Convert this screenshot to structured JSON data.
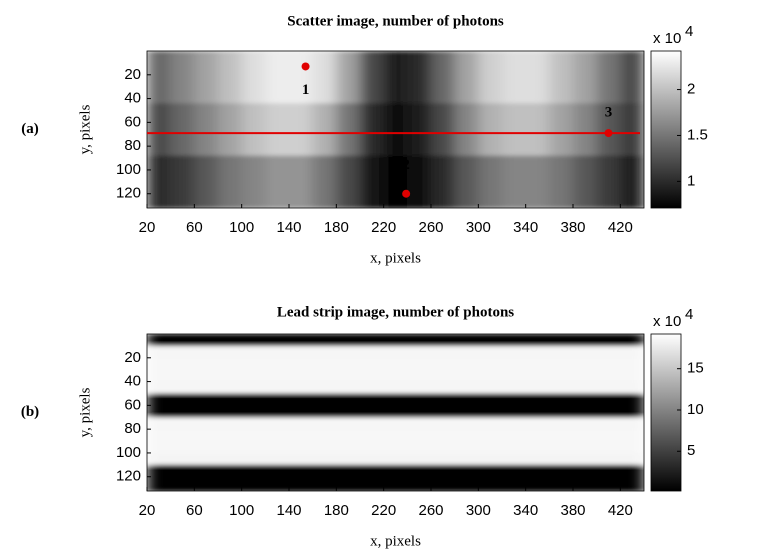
{
  "chart_data": [
    {
      "type": "heatmap",
      "panel_label": "(a)",
      "title": "Scatter image, number of photons",
      "xlabel": "x, pixels",
      "ylabel": "y, pixels",
      "colormap": "gray",
      "x": [
        30,
        50,
        70,
        90,
        110,
        130,
        150,
        170,
        190,
        210,
        230,
        250,
        270,
        290,
        310,
        330,
        350,
        370,
        390,
        410,
        430
      ],
      "y": [
        22,
        66,
        110
      ],
      "values": [
        [
          14000,
          16000,
          18000,
          20000,
          22000,
          23000,
          23000,
          22000,
          18000,
          12000,
          9000,
          10000,
          14000,
          18000,
          21000,
          22000,
          22000,
          20000,
          18000,
          15000,
          12000
        ],
        [
          12000,
          14000,
          16000,
          18000,
          20000,
          21000,
          21000,
          19000,
          15000,
          10000,
          8000,
          9000,
          12000,
          16000,
          19000,
          20000,
          20000,
          18000,
          16000,
          13000,
          11000
        ],
        [
          10000,
          11000,
          13000,
          15000,
          16000,
          17000,
          17000,
          15000,
          12000,
          8500,
          7500,
          8000,
          10000,
          13000,
          15000,
          16000,
          16000,
          15000,
          13000,
          11000,
          9000
        ]
      ],
      "xlim": [
        20,
        440
      ],
      "ylim": [
        0,
        132
      ],
      "xticks": [
        20,
        60,
        100,
        140,
        180,
        220,
        260,
        300,
        340,
        380,
        420
      ],
      "yticks": [
        20,
        40,
        60,
        80,
        100,
        120
      ],
      "clim": [
        7100,
        24200
      ],
      "cticks": [
        {
          "value": 10000,
          "label": "1"
        },
        {
          "value": 15000,
          "label": "1.5"
        },
        {
          "value": 20000,
          "label": "2"
        }
      ],
      "cmultiplier": "x 10",
      "cexponent": "4",
      "annotation_color": "#e00000",
      "line_y": 69,
      "markers": [
        {
          "label": "1",
          "x": 154,
          "y": 13
        },
        {
          "label": "2",
          "x": 239,
          "y": 120
        },
        {
          "label": "3",
          "x": 410,
          "y": 69
        }
      ]
    },
    {
      "type": "heatmap",
      "panel_label": "(b)",
      "title": "Lead strip image, number of photons",
      "xlabel": "x, pixels",
      "ylabel": "y, pixels",
      "colormap": "gray",
      "x": [
        230
      ],
      "y": [
        5,
        15,
        25,
        35,
        45,
        55,
        65,
        75,
        85,
        95,
        105,
        115,
        125
      ],
      "values": [
        [
          3000
        ],
        [
          185000
        ],
        [
          186000
        ],
        [
          186000
        ],
        [
          185000
        ],
        [
          3000
        ],
        [
          3000
        ],
        [
          185000
        ],
        [
          186000
        ],
        [
          186000
        ],
        [
          184000
        ],
        [
          3000
        ],
        [
          3000
        ]
      ],
      "xlim": [
        20,
        440
      ],
      "ylim": [
        0,
        132
      ],
      "xticks": [
        20,
        60,
        100,
        140,
        180,
        220,
        260,
        300,
        340,
        380,
        420
      ],
      "yticks": [
        20,
        40,
        60,
        80,
        100,
        120
      ],
      "clim": [
        1900,
        192000
      ],
      "cticks": [
        {
          "value": 50000,
          "label": "5"
        },
        {
          "value": 100000,
          "label": "10"
        },
        {
          "value": 150000,
          "label": "15"
        }
      ],
      "cmultiplier": "x 10",
      "cexponent": "4"
    }
  ]
}
